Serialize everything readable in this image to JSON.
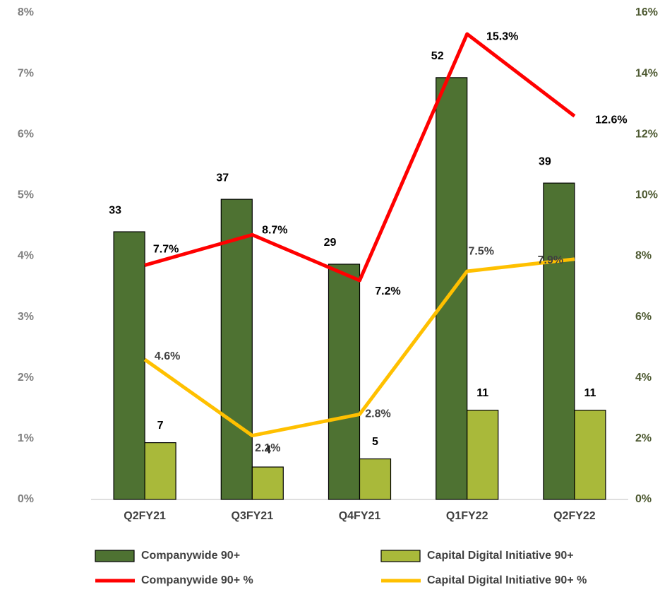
{
  "chart_data": {
    "type": "bar",
    "categories": [
      "Q2FY21",
      "Q3FY21",
      "Q4FY21",
      "Q1FY22",
      "Q2FY22"
    ],
    "series": [
      {
        "name": "Companywide 90+",
        "color": "#4e7232",
        "values": [
          33,
          37,
          29,
          52,
          39
        ]
      },
      {
        "name": "Capital Digital Initiative 90+",
        "color": "#a9b93a",
        "values": [
          7,
          4,
          5,
          11,
          11
        ]
      },
      {
        "name": "Companywide 90+ %",
        "color": "#ff0000",
        "type": "line",
        "axis": "y2",
        "values": [
          7.7,
          8.7,
          7.2,
          15.3,
          12.6
        ],
        "value_labels": [
          "7.7%",
          "8.7%",
          "7.2%",
          "15.3%",
          "12.6%"
        ]
      },
      {
        "name": "Capital Digital Initiative 90+ %",
        "color": "#ffc000",
        "type": "line",
        "axis": "y2",
        "values": [
          4.6,
          2.1,
          2.8,
          7.5,
          7.9
        ],
        "value_labels": [
          "4.6%",
          "2.1%",
          "2.8%",
          "7.5%",
          "7.9%"
        ]
      }
    ],
    "ylim": [
      0,
      60
    ],
    "yticks": [
      {
        "value": 0,
        "label": "0%"
      },
      {
        "value": 7.5,
        "label": "1%"
      },
      {
        "value": 15,
        "label": "2%"
      },
      {
        "value": 22.5,
        "label": "3%"
      },
      {
        "value": 30,
        "label": "4%"
      },
      {
        "value": 37.5,
        "label": "5%"
      },
      {
        "value": 45,
        "label": "6%"
      },
      {
        "value": 52.5,
        "label": "7%"
      },
      {
        "value": 60,
        "label": "8%"
      }
    ],
    "y2lim": [
      0,
      16
    ],
    "y2ticks": [
      {
        "value": 0,
        "label": "0%"
      },
      {
        "value": 2,
        "label": "2%"
      },
      {
        "value": 4,
        "label": "4%"
      },
      {
        "value": 6,
        "label": "6%"
      },
      {
        "value": 8,
        "label": "8%"
      },
      {
        "value": 10,
        "label": "10%"
      },
      {
        "value": 12,
        "label": "12%"
      },
      {
        "value": 14,
        "label": "14%"
      },
      {
        "value": 16,
        "label": "16%"
      }
    ]
  }
}
